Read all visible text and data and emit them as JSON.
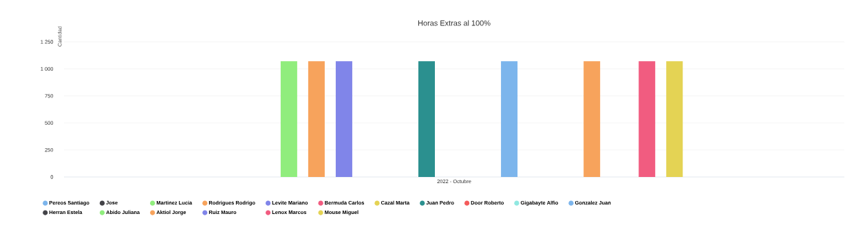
{
  "chart_data": {
    "type": "bar",
    "title": "Horas Extras al 100%",
    "ylabel": "Cantidad",
    "categories": [
      "2022 - Octubre"
    ],
    "series": [
      {
        "name": "Pereos Santiago",
        "color": "#7cb5ec",
        "values": [
          null
        ]
      },
      {
        "name": "Jose",
        "color": "#434348",
        "values": [
          null
        ]
      },
      {
        "name": "Martinez Lucia",
        "color": "#90ed7d",
        "values": [
          1070
        ]
      },
      {
        "name": "Rodrigues Rodrigo",
        "color": "#f7a35c",
        "values": [
          1070
        ]
      },
      {
        "name": "Levite Mariano",
        "color": "#8085e9",
        "values": [
          1070
        ]
      },
      {
        "name": "Bermuda Carlos",
        "color": "#f15c80",
        "values": [
          null
        ]
      },
      {
        "name": "Cazal Marta",
        "color": "#e4d354",
        "values": [
          null
        ]
      },
      {
        "name": "Juan Pedro",
        "color": "#2b908f",
        "values": [
          1070
        ]
      },
      {
        "name": "Door Roberto",
        "color": "#f45b5b",
        "values": [
          null
        ]
      },
      {
        "name": "Gigabayte Alfio",
        "color": "#91e8e1",
        "values": [
          null
        ]
      },
      {
        "name": "Gonzalez Juan",
        "color": "#7cb5ec",
        "values": [
          1070
        ]
      },
      {
        "name": "Herran Estela",
        "color": "#434348",
        "values": [
          null
        ]
      },
      {
        "name": "Abido Juliana",
        "color": "#90ed7d",
        "values": [
          null
        ]
      },
      {
        "name": "Aktiol Jorge",
        "color": "#f7a35c",
        "values": [
          1070
        ]
      },
      {
        "name": "Ruiz Mauro",
        "color": "#8085e9",
        "values": [
          null
        ]
      },
      {
        "name": "Lenox Marcos",
        "color": "#f15c80",
        "values": [
          1070
        ]
      },
      {
        "name": "Mouse Miguel",
        "color": "#e4d354",
        "values": [
          1070
        ]
      }
    ],
    "ylim": [
      0,
      1250
    ],
    "yticks": [
      0,
      250,
      500,
      750,
      {
        "value": 1000,
        "label": "1 000"
      },
      {
        "value": 1250,
        "label": "1 250"
      }
    ],
    "grid": "y",
    "legend": "bottom"
  }
}
